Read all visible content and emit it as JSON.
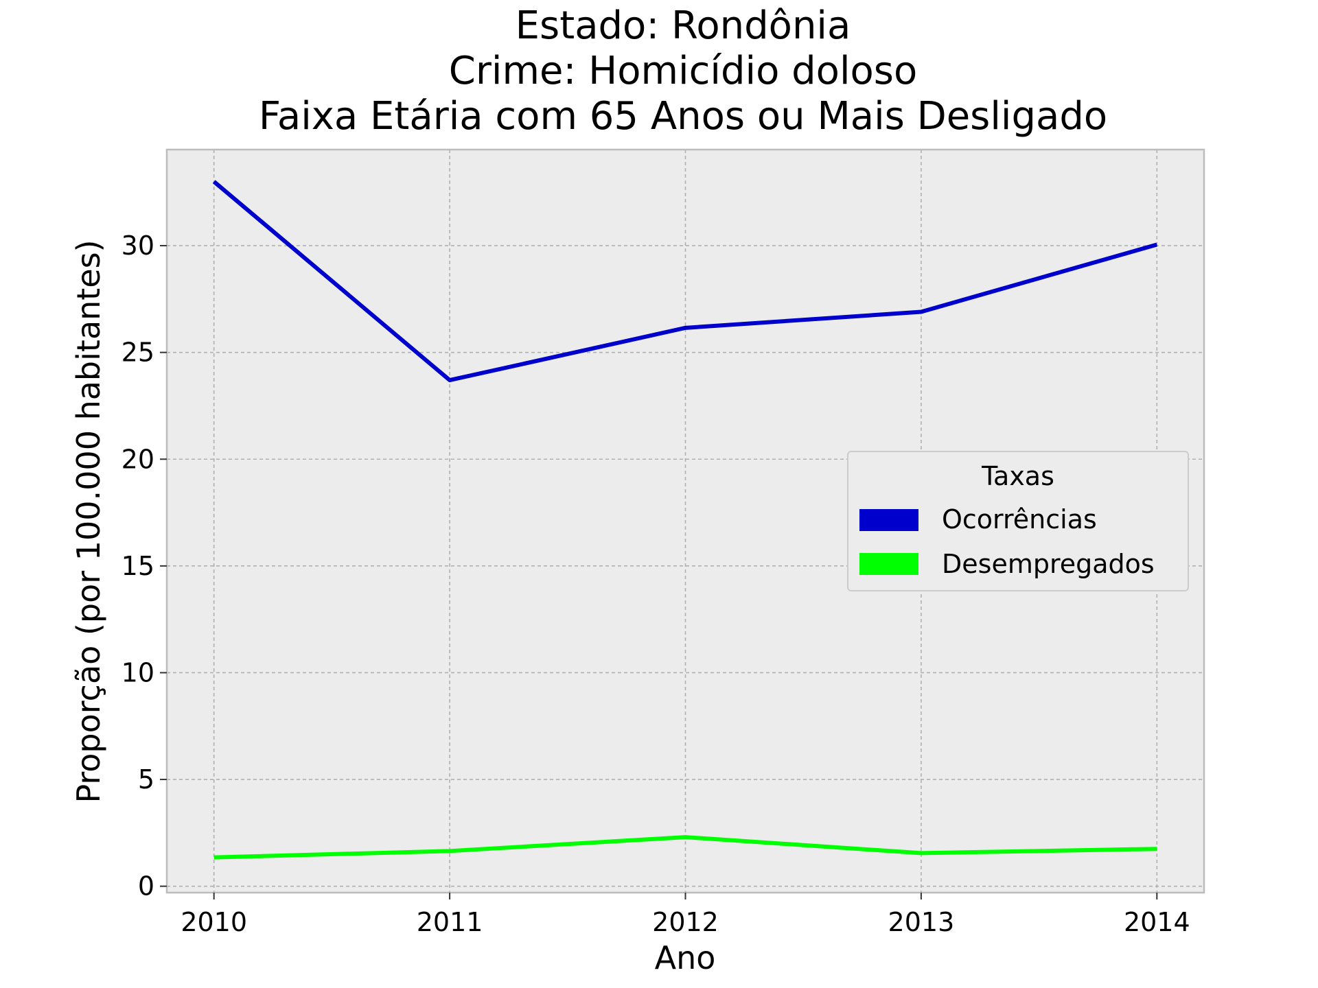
{
  "chart_data": {
    "type": "line",
    "title": [
      "Estado: Rondônia",
      "Crime: Homicídio doloso",
      "Faixa Etária com 65 Anos ou Mais   Desligado"
    ],
    "xlabel": "Ano",
    "ylabel": "Proporção (por 100.000 habitantes)",
    "x": [
      2010,
      2011,
      2012,
      2013,
      2014
    ],
    "x_tick_labels": [
      "2010",
      "2011",
      "2012",
      "2013",
      "2014"
    ],
    "y_ticks": [
      0,
      5,
      10,
      15,
      20,
      25,
      30
    ],
    "y_tick_labels": [
      "0",
      "5",
      "10",
      "15",
      "20",
      "25",
      "30"
    ],
    "xlim": [
      2009.8,
      2014.2
    ],
    "ylim": [
      -0.3,
      34.5
    ],
    "grid": true,
    "legend": {
      "title": "Taxas",
      "placement": "center-right"
    },
    "series": [
      {
        "name": "Ocorrências",
        "color": "#0000cc",
        "values": [
          33.0,
          23.7,
          26.15,
          26.9,
          30.05
        ]
      },
      {
        "name": "Desempregados",
        "color": "#00ff00",
        "values": [
          1.35,
          1.65,
          2.3,
          1.55,
          1.75
        ]
      }
    ],
    "background_color": "#ececec",
    "grid_color": "#b0b0b0"
  }
}
